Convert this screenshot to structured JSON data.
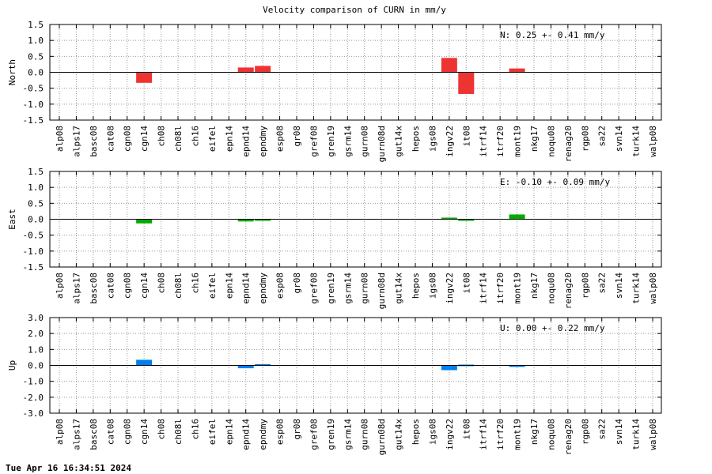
{
  "title": "Velocity comparison of CURN in mm/y",
  "footer": "Tue Apr 16 16:34:51 2024",
  "chart_data": [
    {
      "type": "bar",
      "ylabel": "North",
      "ylim": [
        -1.5,
        1.5
      ],
      "yticks": [
        -1.5,
        -1.0,
        -0.5,
        0.0,
        0.5,
        1.0,
        1.5
      ],
      "ytick_labels": [
        "-1.5",
        "-1.0",
        "-0.5",
        "0.0",
        "0.5",
        "1.0",
        "1.5"
      ],
      "grid": true,
      "annotation": "N:   0.25 +-  0.41 mm/y",
      "color": "#ee3333",
      "categories": [
        "alp08",
        "alps17",
        "basc08",
        "cat08",
        "cgn08",
        "cgn14",
        "ch08",
        "ch08l",
        "ch16",
        "eifel",
        "epn14",
        "epnd14",
        "epndmy",
        "esp08",
        "gr08",
        "gref08",
        "gren19",
        "gsrm14",
        "gurn08",
        "gurn08d",
        "gut14x",
        "hepos",
        "igs08",
        "ingv22",
        "it08",
        "itrf14",
        "itrf20",
        "mont19",
        "nkg17",
        "noqu08",
        "renag20",
        "rgp08",
        "sa22",
        "svn14",
        "turk14",
        "walp08"
      ],
      "values": [
        null,
        null,
        null,
        null,
        null,
        -0.33,
        null,
        null,
        null,
        null,
        null,
        0.15,
        0.2,
        null,
        null,
        null,
        null,
        null,
        null,
        null,
        null,
        null,
        null,
        0.45,
        -0.68,
        null,
        null,
        0.12,
        null,
        null,
        null,
        null,
        null,
        null,
        null,
        null
      ]
    },
    {
      "type": "bar",
      "ylabel": "East",
      "ylim": [
        -1.5,
        1.5
      ],
      "yticks": [
        -1.5,
        -1.0,
        -0.5,
        0.0,
        0.5,
        1.0,
        1.5
      ],
      "ytick_labels": [
        "-1.5",
        "-1.0",
        "-0.5",
        "0.0",
        "0.5",
        "1.0",
        "1.5"
      ],
      "grid": true,
      "annotation": "E:  -0.10 +-  0.09 mm/y",
      "color": "#00aa00",
      "categories": [
        "alp08",
        "alps17",
        "basc08",
        "cat08",
        "cgn08",
        "cgn14",
        "ch08",
        "ch08l",
        "ch16",
        "eifel",
        "epn14",
        "epnd14",
        "epndmy",
        "esp08",
        "gr08",
        "gref08",
        "gren19",
        "gsrm14",
        "gurn08",
        "gurn08d",
        "gut14x",
        "hepos",
        "igs08",
        "ingv22",
        "it08",
        "itrf14",
        "itrf20",
        "mont19",
        "nkg17",
        "noqu08",
        "renag20",
        "rgp08",
        "sa22",
        "svn14",
        "turk14",
        "walp08"
      ],
      "values": [
        null,
        null,
        null,
        null,
        null,
        -0.13,
        null,
        null,
        null,
        null,
        null,
        -0.07,
        -0.03,
        null,
        null,
        null,
        null,
        null,
        null,
        null,
        null,
        null,
        null,
        0.05,
        -0.05,
        null,
        null,
        0.15,
        null,
        null,
        null,
        null,
        null,
        null,
        null,
        null
      ]
    },
    {
      "type": "bar",
      "ylabel": "Up",
      "ylim": [
        -3.0,
        3.0
      ],
      "yticks": [
        -3.0,
        -2.0,
        -1.0,
        0.0,
        1.0,
        2.0,
        3.0
      ],
      "ytick_labels": [
        "-3.0",
        "-2.0",
        "-1.0",
        "0.0",
        "1.0",
        "2.0",
        "3.0"
      ],
      "grid": true,
      "annotation": "U:   0.00 +-  0.22 mm/y",
      "color": "#0080ee",
      "categories": [
        "alp08",
        "alps17",
        "basc08",
        "cat08",
        "cgn08",
        "cgn14",
        "ch08",
        "ch08l",
        "ch16",
        "eifel",
        "epn14",
        "epnd14",
        "epndmy",
        "esp08",
        "gr08",
        "gref08",
        "gren19",
        "gsrm14",
        "gurn08",
        "gurn08d",
        "gut14x",
        "hepos",
        "igs08",
        "ingv22",
        "it08",
        "itrf14",
        "itrf20",
        "mont19",
        "nkg17",
        "noqu08",
        "renag20",
        "rgp08",
        "sa22",
        "svn14",
        "turk14",
        "walp08"
      ],
      "values": [
        null,
        null,
        null,
        null,
        null,
        0.35,
        null,
        null,
        null,
        null,
        null,
        -0.18,
        0.08,
        null,
        null,
        null,
        null,
        null,
        null,
        null,
        null,
        null,
        null,
        -0.3,
        0.05,
        null,
        null,
        -0.05,
        null,
        null,
        null,
        null,
        null,
        null,
        null,
        null
      ]
    }
  ]
}
